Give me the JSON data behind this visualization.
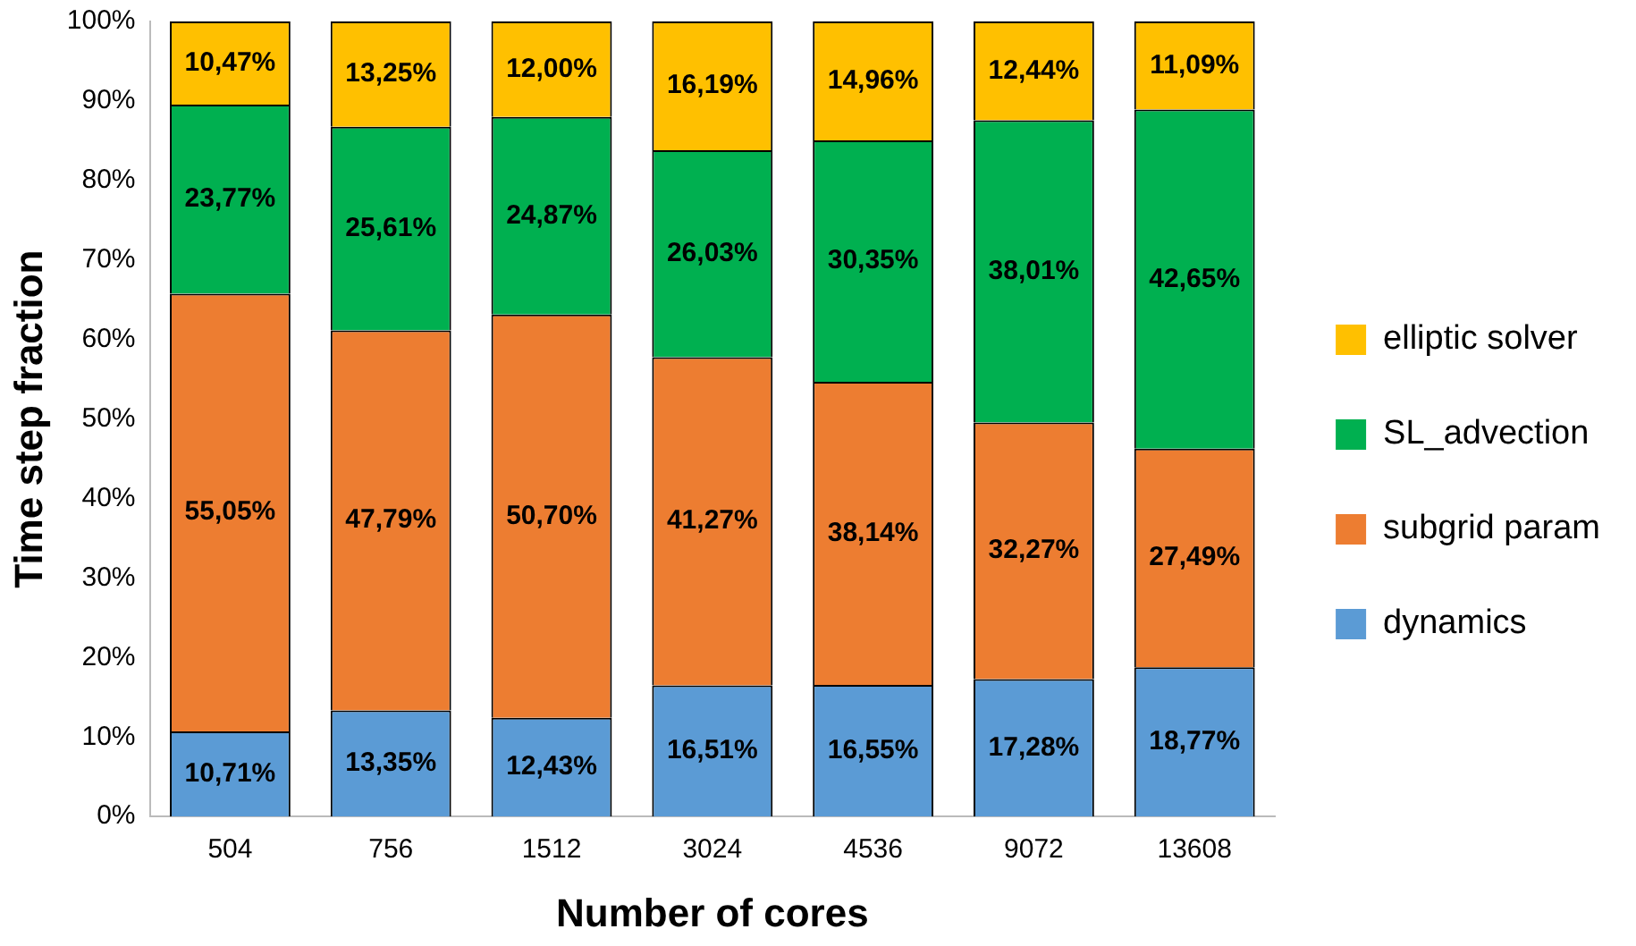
{
  "chart_data": {
    "type": "bar",
    "stacked": true,
    "xlabel": "Number of cores",
    "ylabel": "Time step fraction",
    "categories": [
      "504",
      "756",
      "1512",
      "3024",
      "4536",
      "9072",
      "13608"
    ],
    "series": [
      {
        "name": "dynamics",
        "color": "#5b9bd5",
        "values": [
          10.71,
          13.35,
          12.43,
          16.51,
          16.55,
          17.28,
          18.77
        ],
        "value_labels": [
          "10,71%",
          "13,35%",
          "12,43%",
          "16,51%",
          "16,55%",
          "17,28%",
          "18,77%"
        ]
      },
      {
        "name": "subgrid param",
        "color": "#ed7d31",
        "values": [
          55.05,
          47.79,
          50.7,
          41.27,
          38.14,
          32.27,
          27.49
        ],
        "value_labels": [
          "55,05%",
          "47,79%",
          "50,70%",
          "41,27%",
          "38,14%",
          "32,27%",
          "27,49%"
        ]
      },
      {
        "name": "SL_advection",
        "color": "#00b050",
        "values": [
          23.77,
          25.61,
          24.87,
          26.03,
          30.35,
          38.01,
          42.65
        ],
        "value_labels": [
          "23,77%",
          "25,61%",
          "24,87%",
          "26,03%",
          "30,35%",
          "38,01%",
          "42,65%"
        ]
      },
      {
        "name": "elliptic solver",
        "color": "#ffc000",
        "values": [
          10.47,
          13.25,
          12.0,
          16.19,
          14.96,
          12.44,
          11.09
        ],
        "value_labels": [
          "10,47%",
          "13,25%",
          "12,00%",
          "16,19%",
          "14,96%",
          "12,44%",
          "11,09%"
        ]
      }
    ],
    "ylim": [
      0,
      100
    ],
    "yticks": [
      {
        "value": 0,
        "label": "0%"
      },
      {
        "value": 10,
        "label": "10%"
      },
      {
        "value": 20,
        "label": "20%"
      },
      {
        "value": 30,
        "label": "30%"
      },
      {
        "value": 40,
        "label": "40%"
      },
      {
        "value": 50,
        "label": "50%"
      },
      {
        "value": 60,
        "label": "60%"
      },
      {
        "value": 70,
        "label": "70%"
      },
      {
        "value": 80,
        "label": "80%"
      },
      {
        "value": 90,
        "label": "90%"
      },
      {
        "value": 100,
        "label": "100%"
      }
    ],
    "grid": false,
    "legend": "right"
  }
}
